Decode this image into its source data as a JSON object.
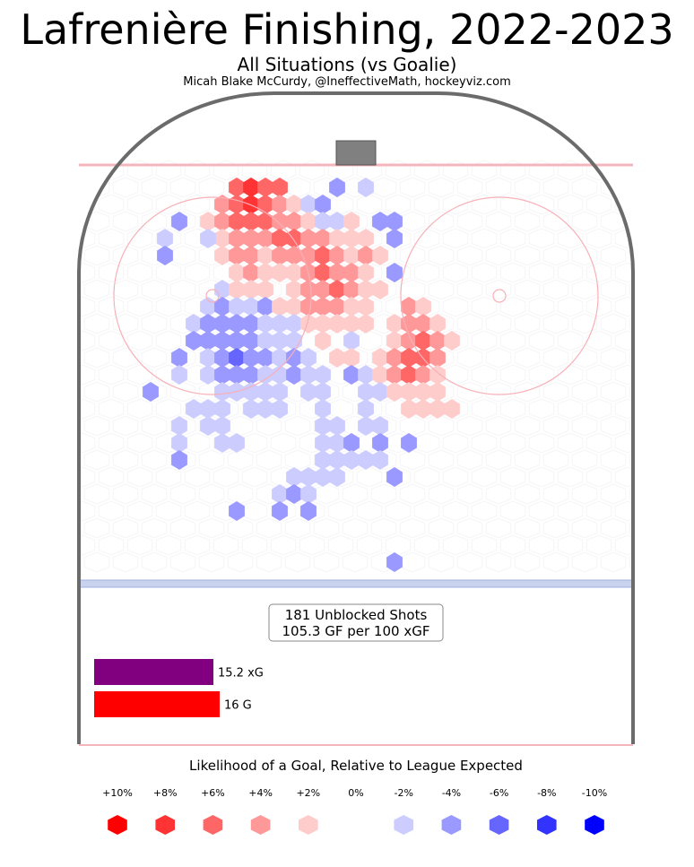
{
  "header": {
    "title": "Lafrenière Finishing, 2022-2023",
    "subtitle": "All Situations (vs Goalie)",
    "credit": "Micah Blake McCurdy, @IneffectiveMath, hockeyviz.com"
  },
  "summary": {
    "shots_line": "181 Unblocked Shots",
    "ratio_line": "105.3 GF per 100 xGF"
  },
  "chart_data": [
    {
      "type": "bar",
      "orientation": "horizontal",
      "categories": [
        "xG",
        "G"
      ],
      "values": [
        15.2,
        16
      ],
      "labels": [
        "15.2 xG",
        "16 G"
      ],
      "colors": [
        "#800080",
        "#ff0000"
      ]
    },
    {
      "type": "heatmap",
      "shape": "hexbin",
      "description_field_free": true,
      "legend": {
        "title": "Likelihood of a Goal, Relative to League Expected",
        "ticks": [
          "+10%",
          "+8%",
          "+6%",
          "+4%",
          "+2%",
          "0%",
          "-2%",
          "-4%",
          "-6%",
          "-8%",
          "-10%"
        ],
        "values": [
          10,
          8,
          6,
          4,
          2,
          0,
          -2,
          -4,
          -6,
          -8,
          -10
        ],
        "colors": [
          "#ff0000",
          "#ff3333",
          "#ff6666",
          "#ff9999",
          "#ffcccc",
          "#ffffff",
          "#ccccff",
          "#9999ff",
          "#6666ff",
          "#3333ff",
          "#0000ff"
        ]
      },
      "cells": [
        {
          "c": 7,
          "r": 1,
          "v": 6
        },
        {
          "c": 8,
          "r": 1,
          "v": 8
        },
        {
          "c": 9,
          "r": 1,
          "v": 6
        },
        {
          "c": 10,
          "r": 1,
          "v": 6
        },
        {
          "c": 6,
          "r": 2,
          "v": 4
        },
        {
          "c": 7,
          "r": 2,
          "v": 6
        },
        {
          "c": 8,
          "r": 2,
          "v": 8
        },
        {
          "c": 9,
          "r": 2,
          "v": 6
        },
        {
          "c": 10,
          "r": 2,
          "v": 4
        },
        {
          "c": 11,
          "r": 2,
          "v": 2
        },
        {
          "c": 12,
          "r": 2,
          "v": -2
        },
        {
          "c": 13,
          "r": 2,
          "v": -4
        },
        {
          "c": 14,
          "r": 1,
          "v": -4
        },
        {
          "c": 16,
          "r": 1,
          "v": -2
        },
        {
          "c": 5,
          "r": 3,
          "v": 2
        },
        {
          "c": 6,
          "r": 3,
          "v": 4
        },
        {
          "c": 7,
          "r": 3,
          "v": 6
        },
        {
          "c": 8,
          "r": 3,
          "v": 6
        },
        {
          "c": 9,
          "r": 3,
          "v": 6
        },
        {
          "c": 10,
          "r": 3,
          "v": 4
        },
        {
          "c": 11,
          "r": 3,
          "v": 4
        },
        {
          "c": 12,
          "r": 3,
          "v": 2
        },
        {
          "c": 13,
          "r": 3,
          "v": -2
        },
        {
          "c": 14,
          "r": 3,
          "v": -2
        },
        {
          "c": 15,
          "r": 3,
          "v": 2
        },
        {
          "c": 17,
          "r": 3,
          "v": -4
        },
        {
          "c": 18,
          "r": 3,
          "v": -4
        },
        {
          "c": 3,
          "r": 3,
          "v": -4
        },
        {
          "c": 6,
          "r": 4,
          "v": 2
        },
        {
          "c": 7,
          "r": 4,
          "v": 4
        },
        {
          "c": 8,
          "r": 4,
          "v": 4
        },
        {
          "c": 9,
          "r": 4,
          "v": 4
        },
        {
          "c": 10,
          "r": 4,
          "v": 6
        },
        {
          "c": 11,
          "r": 4,
          "v": 6
        },
        {
          "c": 12,
          "r": 4,
          "v": 4
        },
        {
          "c": 13,
          "r": 4,
          "v": 4
        },
        {
          "c": 14,
          "r": 4,
          "v": 2
        },
        {
          "c": 15,
          "r": 4,
          "v": 2
        },
        {
          "c": 16,
          "r": 4,
          "v": 2
        },
        {
          "c": 18,
          "r": 4,
          "v": -4
        },
        {
          "c": 5,
          "r": 4,
          "v": -2
        },
        {
          "c": 2,
          "r": 4,
          "v": -2
        },
        {
          "c": 6,
          "r": 5,
          "v": 2
        },
        {
          "c": 7,
          "r": 5,
          "v": 4
        },
        {
          "c": 8,
          "r": 5,
          "v": 4
        },
        {
          "c": 9,
          "r": 5,
          "v": 2
        },
        {
          "c": 10,
          "r": 5,
          "v": 4
        },
        {
          "c": 11,
          "r": 5,
          "v": 4
        },
        {
          "c": 12,
          "r": 5,
          "v": 4
        },
        {
          "c": 13,
          "r": 5,
          "v": 6
        },
        {
          "c": 14,
          "r": 5,
          "v": 4
        },
        {
          "c": 15,
          "r": 5,
          "v": 2
        },
        {
          "c": 16,
          "r": 5,
          "v": 4
        },
        {
          "c": 17,
          "r": 5,
          "v": 2
        },
        {
          "c": 2,
          "r": 5,
          "v": -4
        },
        {
          "c": 7,
          "r": 6,
          "v": 2
        },
        {
          "c": 8,
          "r": 6,
          "v": 4
        },
        {
          "c": 9,
          "r": 6,
          "v": 2
        },
        {
          "c": 10,
          "r": 6,
          "v": 2
        },
        {
          "c": 11,
          "r": 6,
          "v": 2
        },
        {
          "c": 12,
          "r": 6,
          "v": 4
        },
        {
          "c": 13,
          "r": 6,
          "v": 6
        },
        {
          "c": 14,
          "r": 6,
          "v": 4
        },
        {
          "c": 15,
          "r": 6,
          "v": 4
        },
        {
          "c": 16,
          "r": 6,
          "v": 2
        },
        {
          "c": 18,
          "r": 6,
          "v": -4
        },
        {
          "c": 6,
          "r": 7,
          "v": -2
        },
        {
          "c": 7,
          "r": 7,
          "v": 2
        },
        {
          "c": 8,
          "r": 7,
          "v": 2
        },
        {
          "c": 9,
          "r": 7,
          "v": 2
        },
        {
          "c": 11,
          "r": 7,
          "v": 2
        },
        {
          "c": 12,
          "r": 7,
          "v": 4
        },
        {
          "c": 13,
          "r": 7,
          "v": 4
        },
        {
          "c": 14,
          "r": 7,
          "v": 6
        },
        {
          "c": 15,
          "r": 7,
          "v": 4
        },
        {
          "c": 16,
          "r": 7,
          "v": 2
        },
        {
          "c": 17,
          "r": 7,
          "v": 2
        },
        {
          "c": 5,
          "r": 8,
          "v": -2
        },
        {
          "c": 6,
          "r": 8,
          "v": -4
        },
        {
          "c": 7,
          "r": 8,
          "v": -2
        },
        {
          "c": 8,
          "r": 8,
          "v": -2
        },
        {
          "c": 9,
          "r": 8,
          "v": -4
        },
        {
          "c": 10,
          "r": 8,
          "v": 2
        },
        {
          "c": 11,
          "r": 8,
          "v": 2
        },
        {
          "c": 12,
          "r": 8,
          "v": 4
        },
        {
          "c": 13,
          "r": 8,
          "v": 4
        },
        {
          "c": 14,
          "r": 8,
          "v": 4
        },
        {
          "c": 15,
          "r": 8,
          "v": 2
        },
        {
          "c": 16,
          "r": 8,
          "v": 2
        },
        {
          "c": 19,
          "r": 8,
          "v": 4
        },
        {
          "c": 20,
          "r": 8,
          "v": 2
        },
        {
          "c": 4,
          "r": 9,
          "v": -2
        },
        {
          "c": 5,
          "r": 9,
          "v": -4
        },
        {
          "c": 6,
          "r": 9,
          "v": -4
        },
        {
          "c": 7,
          "r": 9,
          "v": -4
        },
        {
          "c": 8,
          "r": 9,
          "v": -4
        },
        {
          "c": 9,
          "r": 9,
          "v": -2
        },
        {
          "c": 10,
          "r": 9,
          "v": -2
        },
        {
          "c": 11,
          "r": 9,
          "v": -2
        },
        {
          "c": 12,
          "r": 9,
          "v": 2
        },
        {
          "c": 13,
          "r": 9,
          "v": 2
        },
        {
          "c": 14,
          "r": 9,
          "v": 2
        },
        {
          "c": 15,
          "r": 9,
          "v": 2
        },
        {
          "c": 16,
          "r": 9,
          "v": 2
        },
        {
          "c": 18,
          "r": 9,
          "v": 2
        },
        {
          "c": 19,
          "r": 9,
          "v": 4
        },
        {
          "c": 20,
          "r": 9,
          "v": 4
        },
        {
          "c": 21,
          "r": 9,
          "v": 2
        },
        {
          "c": 5,
          "r": 10,
          "v": -4
        },
        {
          "c": 6,
          "r": 10,
          "v": -4
        },
        {
          "c": 7,
          "r": 10,
          "v": -4
        },
        {
          "c": 8,
          "r": 10,
          "v": -4
        },
        {
          "c": 9,
          "r": 10,
          "v": -2
        },
        {
          "c": 10,
          "r": 10,
          "v": -2
        },
        {
          "c": 11,
          "r": 10,
          "v": -2
        },
        {
          "c": 13,
          "r": 10,
          "v": 2
        },
        {
          "c": 15,
          "r": 10,
          "v": -2
        },
        {
          "c": 18,
          "r": 10,
          "v": 2
        },
        {
          "c": 19,
          "r": 10,
          "v": 4
        },
        {
          "c": 20,
          "r": 10,
          "v": 6
        },
        {
          "c": 21,
          "r": 10,
          "v": 4
        },
        {
          "c": 22,
          "r": 10,
          "v": 2
        },
        {
          "c": 4,
          "r": 10,
          "v": -4
        },
        {
          "c": 5,
          "r": 11,
          "v": -2
        },
        {
          "c": 6,
          "r": 11,
          "v": -4
        },
        {
          "c": 7,
          "r": 11,
          "v": -6
        },
        {
          "c": 8,
          "r": 11,
          "v": -4
        },
        {
          "c": 9,
          "r": 11,
          "v": -4
        },
        {
          "c": 10,
          "r": 11,
          "v": -2
        },
        {
          "c": 11,
          "r": 11,
          "v": -4
        },
        {
          "c": 12,
          "r": 11,
          "v": -2
        },
        {
          "c": 14,
          "r": 11,
          "v": 2
        },
        {
          "c": 15,
          "r": 11,
          "v": 2
        },
        {
          "c": 17,
          "r": 11,
          "v": 2
        },
        {
          "c": 18,
          "r": 11,
          "v": 4
        },
        {
          "c": 19,
          "r": 11,
          "v": 6
        },
        {
          "c": 20,
          "r": 11,
          "v": 6
        },
        {
          "c": 21,
          "r": 11,
          "v": 4
        },
        {
          "c": 3,
          "r": 11,
          "v": -4
        },
        {
          "c": 5,
          "r": 12,
          "v": -2
        },
        {
          "c": 6,
          "r": 12,
          "v": -4
        },
        {
          "c": 7,
          "r": 12,
          "v": -4
        },
        {
          "c": 8,
          "r": 12,
          "v": -4
        },
        {
          "c": 9,
          "r": 12,
          "v": -2
        },
        {
          "c": 10,
          "r": 12,
          "v": -2
        },
        {
          "c": 11,
          "r": 12,
          "v": -4
        },
        {
          "c": 12,
          "r": 12,
          "v": -2
        },
        {
          "c": 13,
          "r": 12,
          "v": -2
        },
        {
          "c": 15,
          "r": 12,
          "v": -4
        },
        {
          "c": 16,
          "r": 12,
          "v": -2
        },
        {
          "c": 17,
          "r": 12,
          "v": 2
        },
        {
          "c": 18,
          "r": 12,
          "v": 4
        },
        {
          "c": 19,
          "r": 12,
          "v": 6
        },
        {
          "c": 20,
          "r": 12,
          "v": 4
        },
        {
          "c": 21,
          "r": 12,
          "v": 2
        },
        {
          "c": 3,
          "r": 12,
          "v": -2
        },
        {
          "c": 6,
          "r": 13,
          "v": -2
        },
        {
          "c": 7,
          "r": 13,
          "v": -2
        },
        {
          "c": 8,
          "r": 13,
          "v": -2
        },
        {
          "c": 9,
          "r": 13,
          "v": -2
        },
        {
          "c": 10,
          "r": 13,
          "v": -2
        },
        {
          "c": 12,
          "r": 13,
          "v": -2
        },
        {
          "c": 13,
          "r": 13,
          "v": -2
        },
        {
          "c": 16,
          "r": 13,
          "v": -2
        },
        {
          "c": 17,
          "r": 13,
          "v": -2
        },
        {
          "c": 18,
          "r": 13,
          "v": 2
        },
        {
          "c": 19,
          "r": 13,
          "v": 2
        },
        {
          "c": 20,
          "r": 13,
          "v": 2
        },
        {
          "c": 21,
          "r": 13,
          "v": 2
        },
        {
          "c": 1,
          "r": 13,
          "v": -4
        },
        {
          "c": 4,
          "r": 14,
          "v": -2
        },
        {
          "c": 5,
          "r": 14,
          "v": -2
        },
        {
          "c": 6,
          "r": 14,
          "v": -2
        },
        {
          "c": 8,
          "r": 14,
          "v": -2
        },
        {
          "c": 9,
          "r": 14,
          "v": -2
        },
        {
          "c": 10,
          "r": 14,
          "v": -2
        },
        {
          "c": 13,
          "r": 14,
          "v": -2
        },
        {
          "c": 16,
          "r": 14,
          "v": -2
        },
        {
          "c": 19,
          "r": 14,
          "v": 2
        },
        {
          "c": 20,
          "r": 14,
          "v": 2
        },
        {
          "c": 21,
          "r": 14,
          "v": 2
        },
        {
          "c": 22,
          "r": 14,
          "v": 2
        },
        {
          "c": 3,
          "r": 15,
          "v": -2
        },
        {
          "c": 5,
          "r": 15,
          "v": -2
        },
        {
          "c": 6,
          "r": 15,
          "v": -2
        },
        {
          "c": 13,
          "r": 15,
          "v": -2
        },
        {
          "c": 14,
          "r": 15,
          "v": -2
        },
        {
          "c": 16,
          "r": 15,
          "v": -2
        },
        {
          "c": 17,
          "r": 15,
          "v": -2
        },
        {
          "c": 3,
          "r": 16,
          "v": -2
        },
        {
          "c": 6,
          "r": 16,
          "v": -2
        },
        {
          "c": 7,
          "r": 16,
          "v": -2
        },
        {
          "c": 13,
          "r": 16,
          "v": -2
        },
        {
          "c": 14,
          "r": 16,
          "v": -2
        },
        {
          "c": 15,
          "r": 16,
          "v": -4
        },
        {
          "c": 17,
          "r": 16,
          "v": -4
        },
        {
          "c": 17,
          "r": 17,
          "v": -2
        },
        {
          "c": 19,
          "r": 16,
          "v": -4
        },
        {
          "c": 3,
          "r": 17,
          "v": -4
        },
        {
          "c": 13,
          "r": 17,
          "v": -2
        },
        {
          "c": 14,
          "r": 17,
          "v": -2
        },
        {
          "c": 15,
          "r": 17,
          "v": -2
        },
        {
          "c": 16,
          "r": 17,
          "v": -2
        },
        {
          "c": 11,
          "r": 18,
          "v": -2
        },
        {
          "c": 12,
          "r": 18,
          "v": -2
        },
        {
          "c": 13,
          "r": 18,
          "v": -2
        },
        {
          "c": 14,
          "r": 18,
          "v": -2
        },
        {
          "c": 18,
          "r": 18,
          "v": -4
        },
        {
          "c": 10,
          "r": 19,
          "v": -2
        },
        {
          "c": 11,
          "r": 19,
          "v": -4
        },
        {
          "c": 12,
          "r": 19,
          "v": -2
        },
        {
          "c": 7,
          "r": 20,
          "v": -4
        },
        {
          "c": 10,
          "r": 20,
          "v": -4
        },
        {
          "c": 12,
          "r": 20,
          "v": -4
        },
        {
          "c": 18,
          "r": 23,
          "v": -4
        }
      ]
    }
  ]
}
